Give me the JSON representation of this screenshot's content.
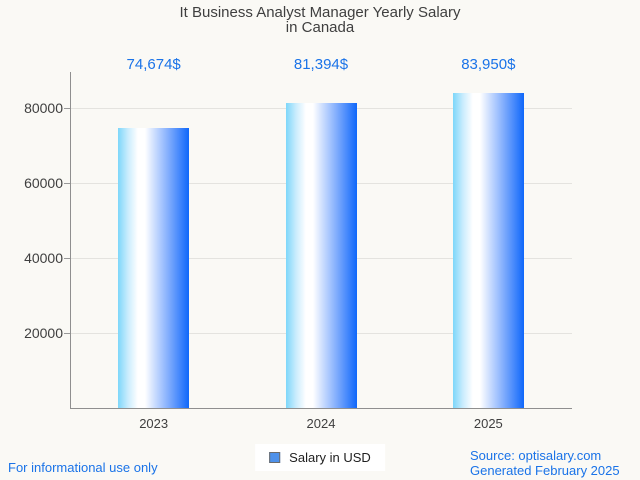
{
  "title": {
    "line1": "It Business Analyst Manager Yearly Salary",
    "line2": "in Canada"
  },
  "chart_data": {
    "type": "bar",
    "title": "It Business Analyst Manager Yearly Salary in Canada",
    "categories": [
      "2023",
      "2024",
      "2025"
    ],
    "series": [
      {
        "name": "Salary in USD",
        "values": [
          74674,
          81394,
          83950
        ]
      }
    ],
    "value_labels": [
      "74,674$",
      "81,394$",
      "83,950$"
    ],
    "xlabel": "",
    "ylabel": "",
    "ylim": [
      0,
      89600
    ],
    "yticks": [
      20000,
      40000,
      60000,
      80000
    ],
    "ytick_labels": [
      "20000",
      "40000",
      "60000",
      "80000"
    ],
    "grid": true,
    "legend": [
      "Salary in USD"
    ],
    "legend_position": "bottom"
  },
  "footer": {
    "disclaimer": "For informational use only",
    "source": "Source: optisalary.com",
    "generated": "Generated February 2025"
  },
  "colors": {
    "accent_text": "#1a73e8",
    "title_text": "#3f3f3f",
    "axis_line": "#8f8f8f",
    "grid_line": "#e4e3df",
    "legend_marker": "#4e91ea",
    "bar_gradient_left": "#7dd7fa",
    "bar_gradient_mid": "#ffffff",
    "bar_gradient_late": "#86b0fd",
    "bar_gradient_right": "#0f67fa"
  }
}
